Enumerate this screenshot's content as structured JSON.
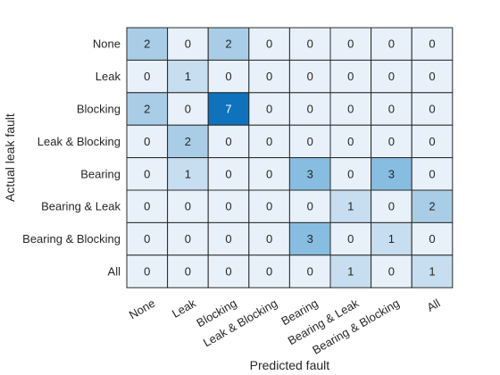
{
  "chart_data": {
    "type": "heatmap",
    "xlabel": "Predicted fault",
    "ylabel": "Actual leak fault",
    "row_labels": [
      "None",
      "Leak",
      "Blocking",
      "Leak & Blocking",
      "Bearing",
      "Bearing & Leak",
      "Bearing & Blocking",
      "All"
    ],
    "col_labels": [
      "None",
      "Leak",
      "Blocking",
      "Leak & Blocking",
      "Bearing",
      "Bearing & Leak",
      "Bearing & Blocking",
      "All"
    ],
    "values": [
      [
        2,
        0,
        2,
        0,
        0,
        0,
        0,
        0
      ],
      [
        0,
        1,
        0,
        0,
        0,
        0,
        0,
        0
      ],
      [
        2,
        0,
        7,
        0,
        0,
        0,
        0,
        0
      ],
      [
        0,
        2,
        0,
        0,
        0,
        0,
        0,
        0
      ],
      [
        0,
        1,
        0,
        0,
        3,
        0,
        3,
        0
      ],
      [
        0,
        0,
        0,
        0,
        0,
        1,
        0,
        2
      ],
      [
        0,
        0,
        0,
        0,
        3,
        0,
        1,
        0
      ],
      [
        0,
        0,
        0,
        0,
        0,
        1,
        0,
        1
      ]
    ],
    "colormap": [
      "#e8f1f9",
      "#c7ddf0",
      "#a9cde6",
      "#87bde0",
      "#0e72bd"
    ],
    "color_range": [
      0,
      7
    ],
    "text_color_light": "#ffffff",
    "text_color_dark": "#262626"
  }
}
